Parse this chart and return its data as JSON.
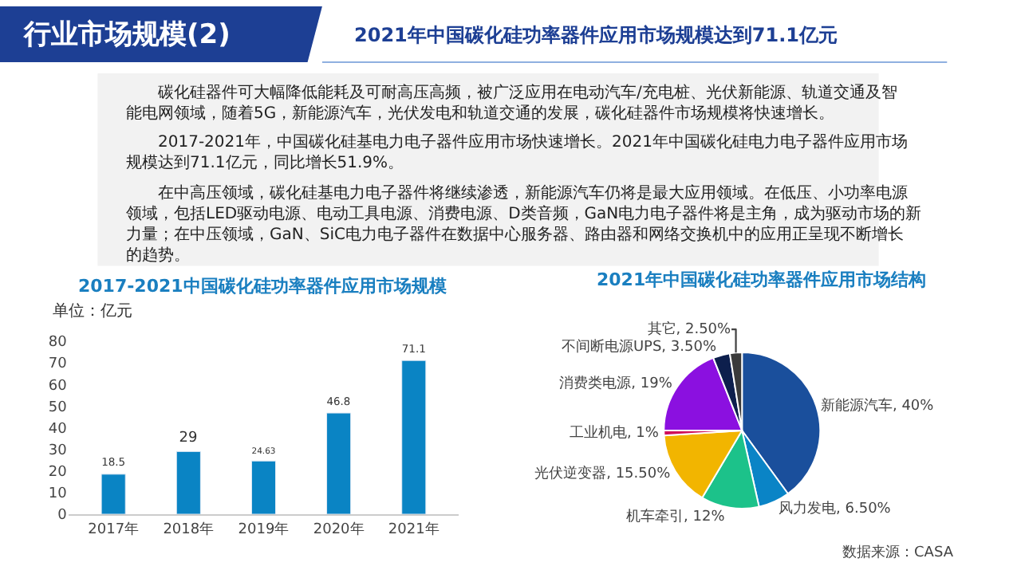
{
  "chart_data": [
    {
      "type": "other",
      "title": "行业市场规模(2)",
      "subtitle": "2021年中国碳化硅功率器件应用市场规模达到71.1亿元",
      "annotations": [
        "碳化硅器件可大幅降低能耗及可耐高压高频，被广泛应用在电动汽车/充电桩、光伏新能源、轨道交通及智能电网领域，随着5G，新能源汽车，光伏发电和轨道交通的发展，碳化硅器件市场规模将快速增长。",
        "2017-2021年，中国碳化硅基电力电子器件应用市场快速增长。2021年中国碳化硅电力电子器件应用市场规模达到71.1亿元，同比增长51.9%。",
        "在中高压领域，碳化硅基电力电子器件将继续渗透，新能源汽车仍将是最大应用领域。在低压、小功率电源领域，包括LED驱动电源、电动工具电源、消费电源、D类音频，GaN电力电子器件将是主角，成为驱动市场的新力量；在中压领域，GaN、SiC电力电子器件在数据中心服务器、路由器和网络交换机中的应用正呈现不断增长的趋势。"
      ]
    },
    {
      "type": "bar",
      "title": "2017-2021中国碳化硅功率器件应用市场规模",
      "ylabel": "单位：亿元",
      "categories": [
        "2017年",
        "2018年",
        "2019年",
        "2020年",
        "2021年"
      ],
      "values": [
        18.5,
        29,
        24.63,
        46.8,
        71.1
      ],
      "color": "#0a84c4",
      "ylim": [
        0,
        80
      ],
      "yticks": [
        0,
        10,
        20,
        30,
        40,
        50,
        60,
        70,
        80
      ],
      "data_labels": true
    },
    {
      "type": "pie",
      "title": "2021年中国碳化硅功率器件应用市场结构",
      "categories": [
        "新能源汽车",
        "风力发电",
        "机车牵引",
        "光伏逆变器",
        "工业机电",
        "消费类电源",
        "不间断电源UPS",
        "其它"
      ],
      "values": [
        40,
        6.5,
        12,
        15.5,
        1,
        19,
        3.5,
        2.5
      ],
      "value_labels": [
        "40%",
        "6.50%",
        "12%",
        "15.50%",
        "1%",
        "19%",
        "3.50%",
        "2.50%"
      ],
      "colors": [
        "#1a4f9c",
        "#0a84c6",
        "#1cc28a",
        "#f2b500",
        "#d0105a",
        "#8b10e0",
        "#0d1f4d",
        "#3a3a3a"
      ],
      "annotations": [
        "数据来源：CASA"
      ]
    }
  ]
}
